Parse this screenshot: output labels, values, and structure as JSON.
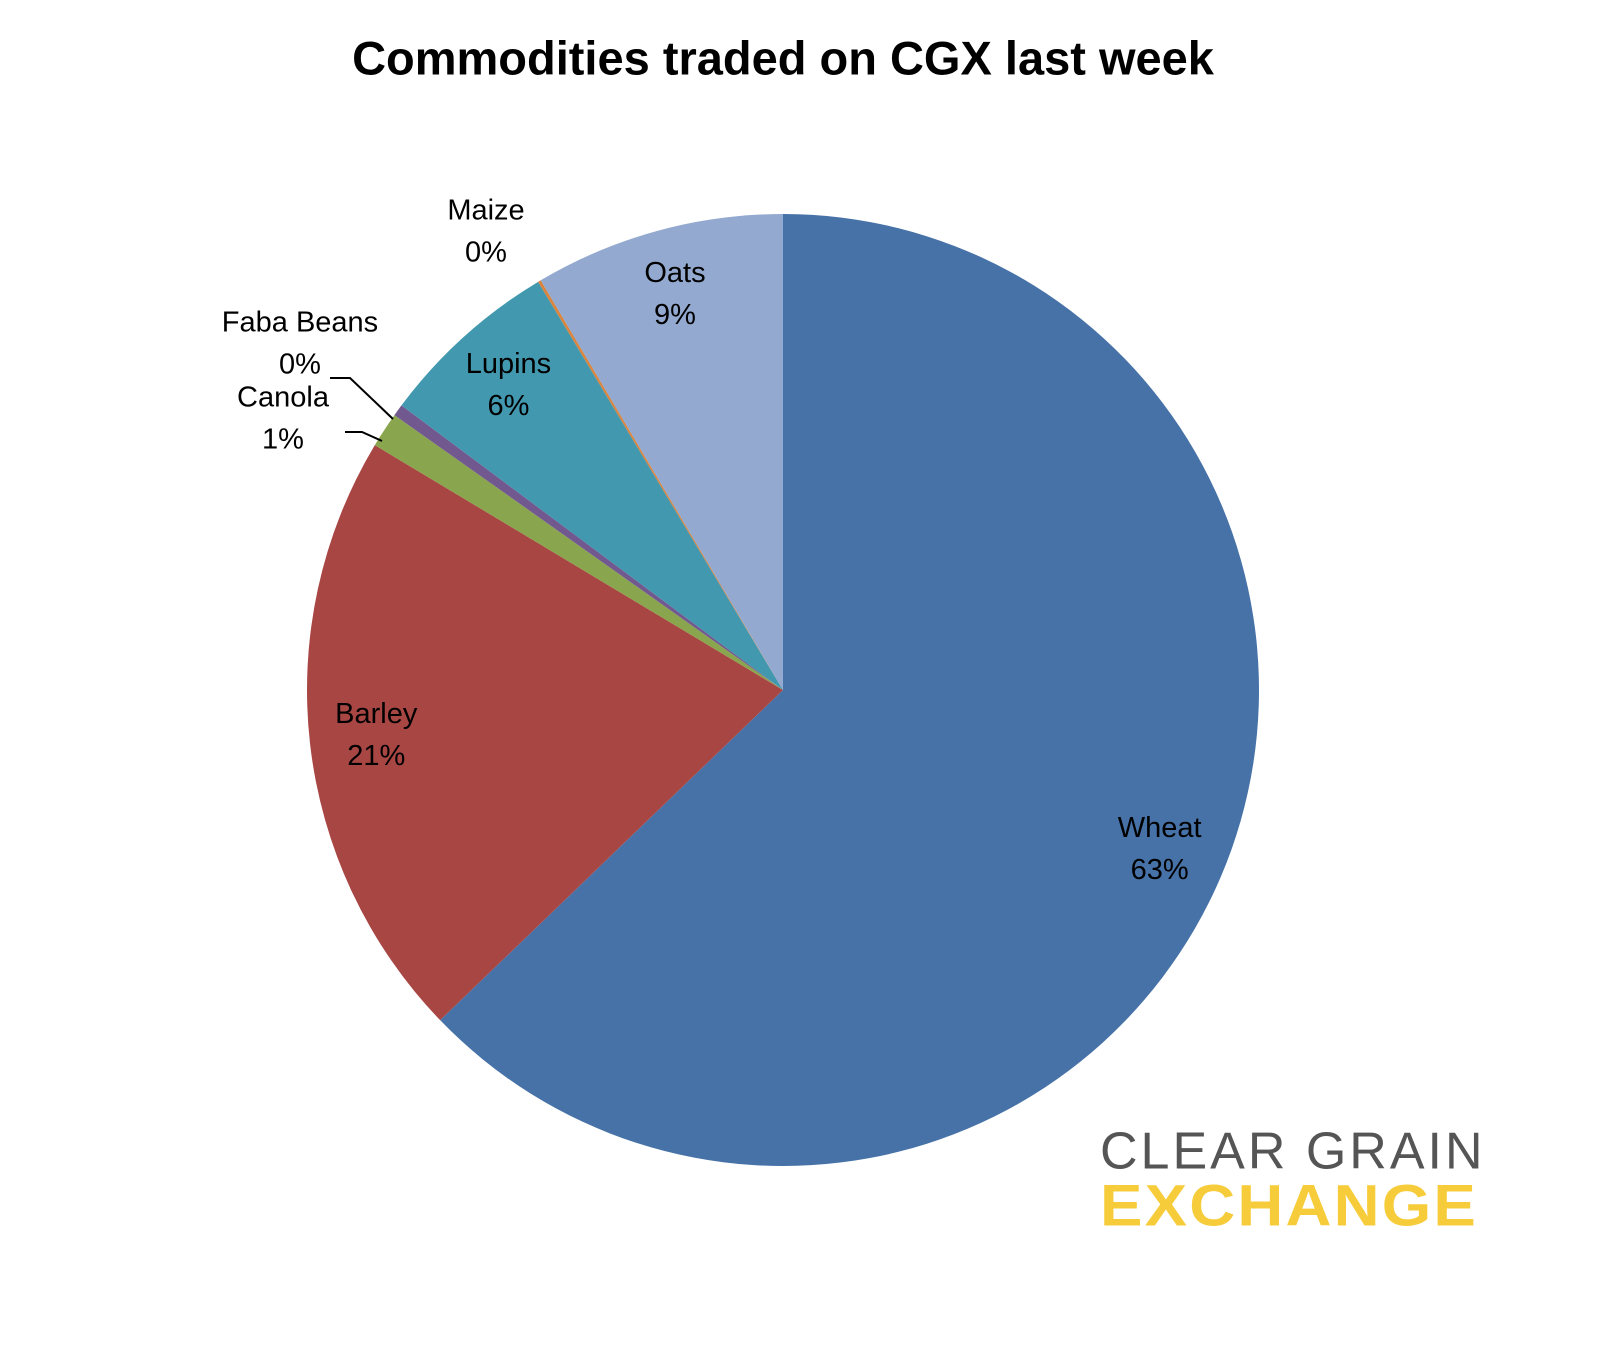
{
  "chart_data": {
    "type": "pie",
    "title": "Commodities traded on CGX last week",
    "categories": [
      "Wheat",
      "Barley",
      "Canola",
      "Faba Beans",
      "Lupins",
      "Maize",
      "Oats"
    ],
    "values": [
      62.8,
      20.8,
      1.2,
      0.4,
      6.2,
      0.1,
      8.5
    ],
    "value_labels": [
      "63%",
      "21%",
      "1%",
      "0%",
      "6%",
      "0%",
      "9%"
    ],
    "colors": [
      "#4672a7",
      "#a84644",
      "#89a54e",
      "#71588f",
      "#4298af",
      "#db843d",
      "#93a9cf"
    ]
  },
  "logo": {
    "line1": "CLEAR GRAIN",
    "line2": "EXCHANGE"
  }
}
